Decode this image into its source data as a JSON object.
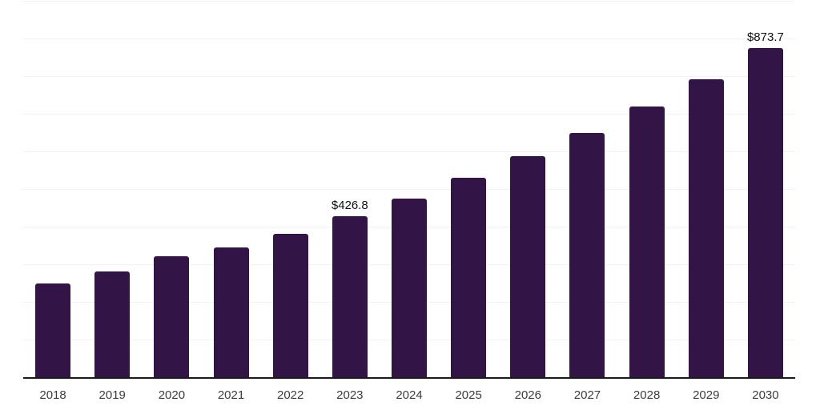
{
  "chart_data": {
    "type": "bar",
    "title": "",
    "xlabel": "",
    "ylabel": "",
    "categories": [
      "2018",
      "2019",
      "2020",
      "2021",
      "2022",
      "2023",
      "2024",
      "2025",
      "2026",
      "2027",
      "2028",
      "2029",
      "2030"
    ],
    "values": [
      248.0,
      280.6,
      320.4,
      343.8,
      380.6,
      426.8,
      474.3,
      530.0,
      586.4,
      649.6,
      719.0,
      792.2,
      873.7
    ],
    "data_labels": [
      "",
      "",
      "",
      "",
      "",
      "$426.8",
      "",
      "",
      "",
      "",
      "",
      "",
      "$873.7"
    ],
    "ylim": [
      0,
      1000
    ],
    "gridline_step": 100,
    "grid": true,
    "legend": false,
    "colors": {
      "bar": "#321447",
      "gridline": "#f2f2f2",
      "axis_line": "#1a1a1a",
      "tick_label": "#3d3d3d",
      "data_label": "#111111"
    }
  }
}
